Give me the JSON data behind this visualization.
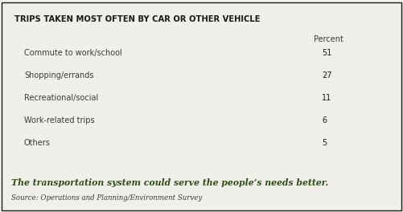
{
  "title": "TRIPS TAKEN MOST OFTEN BY CAR OR OTHER VEHICLE",
  "col_header": "Percent",
  "rows": [
    {
      "label": "Commute to work/school",
      "value": "51"
    },
    {
      "label": "Shopping/errands",
      "value": "27"
    },
    {
      "label": "Recreational/social",
      "value": "11"
    },
    {
      "label": "Work-related trips",
      "value": "6"
    },
    {
      "label": "Others",
      "value": "5"
    }
  ],
  "italic_text": "The transportation system could serve the people’s needs better.",
  "source_text": "Source: Operations and Planning/Environment Survey",
  "bg_color": "#f0efe9",
  "border_color": "#1a1a1a",
  "title_color": "#1a1a1a",
  "row_label_color": "#3a3a3a",
  "value_color": "#1a1a1a",
  "italic_color": "#2d5016",
  "source_color": "#3a3a3a",
  "title_fontsize": 7.2,
  "header_fontsize": 7.0,
  "row_fontsize": 7.0,
  "italic_fontsize": 7.8,
  "source_fontsize": 6.2
}
